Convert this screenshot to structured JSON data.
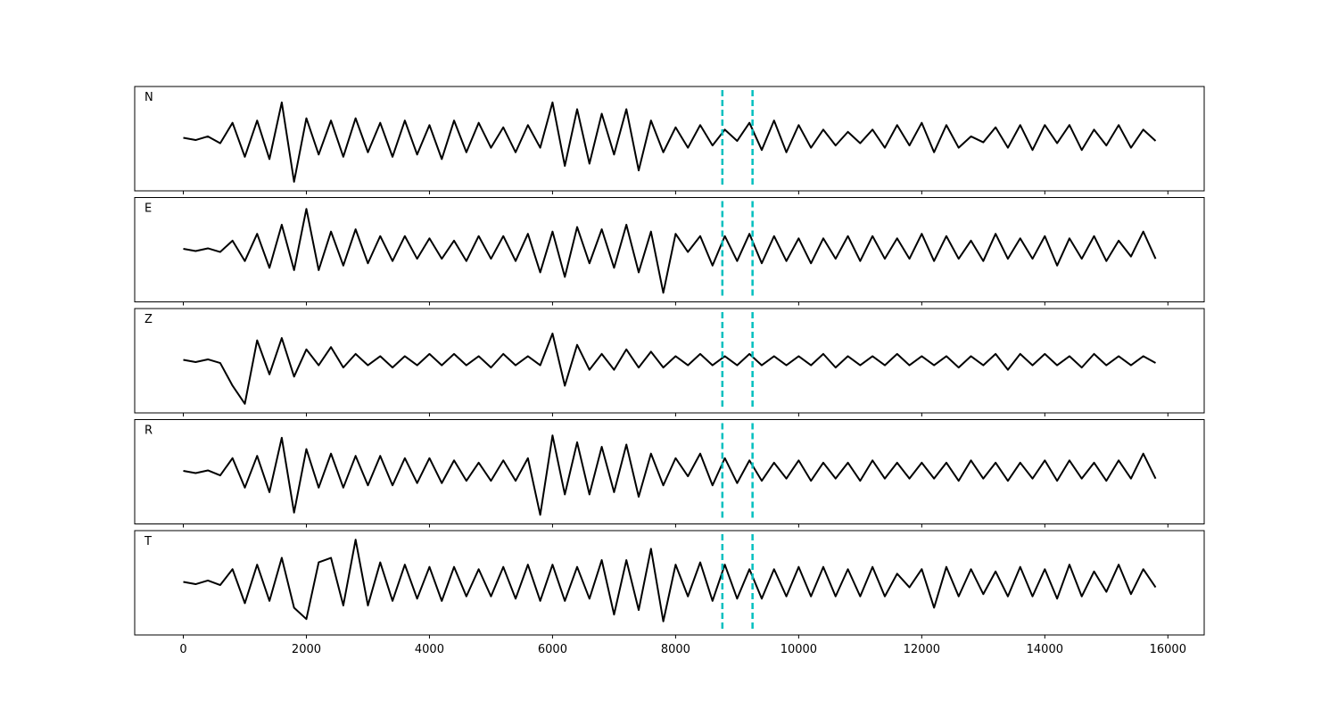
{
  "chart_data": {
    "type": "line",
    "x": [
      0,
      200,
      400,
      600,
      800,
      1000,
      1200,
      1400,
      1600,
      1800,
      2000,
      2200,
      2400,
      2600,
      2800,
      3000,
      3200,
      3400,
      3600,
      3800,
      4000,
      4200,
      4400,
      4600,
      4800,
      5000,
      5200,
      5400,
      5600,
      5800,
      6000,
      6200,
      6400,
      6600,
      6800,
      7000,
      7200,
      7400,
      7600,
      7800,
      8000,
      8200,
      8400,
      8600,
      8800,
      9000,
      9200,
      9400,
      9600,
      9800,
      10000,
      10200,
      10400,
      10600,
      10800,
      11000,
      11200,
      11400,
      11600,
      11800,
      12000,
      12200,
      12400,
      12600,
      12800,
      13000,
      13200,
      13400,
      13600,
      13800,
      14000,
      14200,
      14400,
      14600,
      14800,
      15000,
      15200,
      15400,
      15600,
      15800
    ],
    "xlim": [
      -790,
      16590
    ],
    "xticks": [
      0,
      2000,
      4000,
      6000,
      8000,
      10000,
      12000,
      14000,
      16000
    ],
    "ylim": [
      -1.15,
      1.15
    ],
    "markers": [
      8760,
      9250
    ],
    "marker_color": "#00bfbf",
    "series": [
      {
        "name": "N",
        "color": "#000000",
        "values": [
          0.02,
          -0.03,
          0.05,
          -0.1,
          0.35,
          -0.4,
          0.4,
          -0.45,
          0.8,
          -0.95,
          0.45,
          -0.35,
          0.4,
          -0.4,
          0.45,
          -0.3,
          0.35,
          -0.4,
          0.4,
          -0.35,
          0.3,
          -0.45,
          0.4,
          -0.3,
          0.35,
          -0.2,
          0.25,
          -0.3,
          0.3,
          -0.2,
          0.8,
          -0.6,
          0.65,
          -0.55,
          0.55,
          -0.35,
          0.65,
          -0.7,
          0.4,
          -0.3,
          0.25,
          -0.2,
          0.3,
          -0.15,
          0.2,
          -0.05,
          0.35,
          -0.25,
          0.4,
          -0.3,
          0.3,
          -0.2,
          0.2,
          -0.15,
          0.15,
          -0.1,
          0.2,
          -0.2,
          0.3,
          -0.15,
          0.35,
          -0.3,
          0.3,
          -0.2,
          0.05,
          -0.08,
          0.25,
          -0.2,
          0.3,
          -0.25,
          0.3,
          -0.1,
          0.3,
          -0.25,
          0.2,
          -0.15,
          0.3,
          -0.2,
          0.2,
          -0.05
        ]
      },
      {
        "name": "E",
        "color": "#000000",
        "values": [
          0.02,
          -0.03,
          0.03,
          -0.05,
          0.2,
          -0.25,
          0.35,
          -0.4,
          0.55,
          -0.45,
          0.9,
          -0.45,
          0.4,
          -0.35,
          0.45,
          -0.3,
          0.3,
          -0.25,
          0.3,
          -0.2,
          0.25,
          -0.2,
          0.2,
          -0.25,
          0.3,
          -0.2,
          0.3,
          -0.25,
          0.35,
          -0.5,
          0.4,
          -0.6,
          0.5,
          -0.3,
          0.45,
          -0.4,
          0.55,
          -0.5,
          0.4,
          -0.95,
          0.35,
          -0.05,
          0.3,
          -0.35,
          0.3,
          -0.25,
          0.35,
          -0.3,
          0.3,
          -0.25,
          0.25,
          -0.3,
          0.25,
          -0.2,
          0.3,
          -0.25,
          0.3,
          -0.2,
          0.25,
          -0.2,
          0.35,
          -0.25,
          0.3,
          -0.2,
          0.2,
          -0.25,
          0.35,
          -0.2,
          0.25,
          -0.2,
          0.3,
          -0.35,
          0.25,
          -0.2,
          0.3,
          -0.25,
          0.2,
          -0.15,
          0.4,
          -0.2
        ]
      },
      {
        "name": "Z",
        "color": "#000000",
        "values": [
          0.02,
          -0.03,
          0.03,
          -0.05,
          -0.55,
          -0.95,
          0.45,
          -0.3,
          0.5,
          -0.35,
          0.25,
          -0.1,
          0.3,
          -0.15,
          0.15,
          -0.1,
          0.1,
          -0.15,
          0.1,
          -0.1,
          0.15,
          -0.1,
          0.15,
          -0.1,
          0.1,
          -0.15,
          0.15,
          -0.1,
          0.1,
          -0.1,
          0.6,
          -0.55,
          0.35,
          -0.2,
          0.15,
          -0.2,
          0.25,
          -0.15,
          0.2,
          -0.15,
          0.1,
          -0.1,
          0.15,
          -0.1,
          0.1,
          -0.1,
          0.15,
          -0.1,
          0.1,
          -0.1,
          0.1,
          -0.1,
          0.15,
          -0.15,
          0.1,
          -0.1,
          0.1,
          -0.1,
          0.15,
          -0.1,
          0.1,
          -0.1,
          0.1,
          -0.15,
          0.1,
          -0.1,
          0.15,
          -0.2,
          0.15,
          -0.1,
          0.15,
          -0.1,
          0.1,
          -0.15,
          0.15,
          -0.1,
          0.1,
          -0.1,
          0.1,
          -0.05
        ]
      },
      {
        "name": "R",
        "color": "#000000",
        "values": [
          0.02,
          -0.03,
          0.03,
          -0.08,
          0.3,
          -0.35,
          0.35,
          -0.45,
          0.75,
          -0.9,
          0.5,
          -0.35,
          0.4,
          -0.35,
          0.35,
          -0.3,
          0.35,
          -0.3,
          0.3,
          -0.25,
          0.3,
          -0.25,
          0.25,
          -0.2,
          0.2,
          -0.2,
          0.25,
          -0.2,
          0.3,
          -0.95,
          0.8,
          -0.5,
          0.65,
          -0.5,
          0.55,
          -0.45,
          0.6,
          -0.55,
          0.4,
          -0.3,
          0.3,
          -0.1,
          0.4,
          -0.3,
          0.3,
          -0.25,
          0.25,
          -0.2,
          0.2,
          -0.15,
          0.25,
          -0.2,
          0.2,
          -0.15,
          0.2,
          -0.2,
          0.25,
          -0.15,
          0.2,
          -0.15,
          0.2,
          -0.15,
          0.2,
          -0.2,
          0.25,
          -0.15,
          0.2,
          -0.2,
          0.2,
          -0.15,
          0.25,
          -0.2,
          0.25,
          -0.15,
          0.2,
          -0.2,
          0.25,
          -0.15,
          0.4,
          -0.15
        ]
      },
      {
        "name": "T",
        "color": "#000000",
        "values": [
          0.02,
          -0.03,
          0.05,
          -0.05,
          0.3,
          -0.45,
          0.4,
          -0.4,
          0.55,
          -0.55,
          -0.8,
          0.45,
          0.55,
          -0.5,
          0.95,
          -0.5,
          0.45,
          -0.4,
          0.4,
          -0.35,
          0.35,
          -0.4,
          0.35,
          -0.3,
          0.3,
          -0.3,
          0.35,
          -0.35,
          0.4,
          -0.4,
          0.4,
          -0.4,
          0.35,
          -0.35,
          0.5,
          -0.7,
          0.5,
          -0.6,
          0.75,
          -0.85,
          0.4,
          -0.3,
          0.45,
          -0.4,
          0.4,
          -0.35,
          0.3,
          -0.35,
          0.3,
          -0.3,
          0.35,
          -0.3,
          0.35,
          -0.3,
          0.3,
          -0.3,
          0.35,
          -0.3,
          0.2,
          -0.1,
          0.3,
          -0.55,
          0.35,
          -0.3,
          0.3,
          -0.25,
          0.25,
          -0.3,
          0.35,
          -0.3,
          0.3,
          -0.35,
          0.4,
          -0.3,
          0.25,
          -0.2,
          0.4,
          -0.25,
          0.3,
          -0.1
        ]
      }
    ]
  }
}
